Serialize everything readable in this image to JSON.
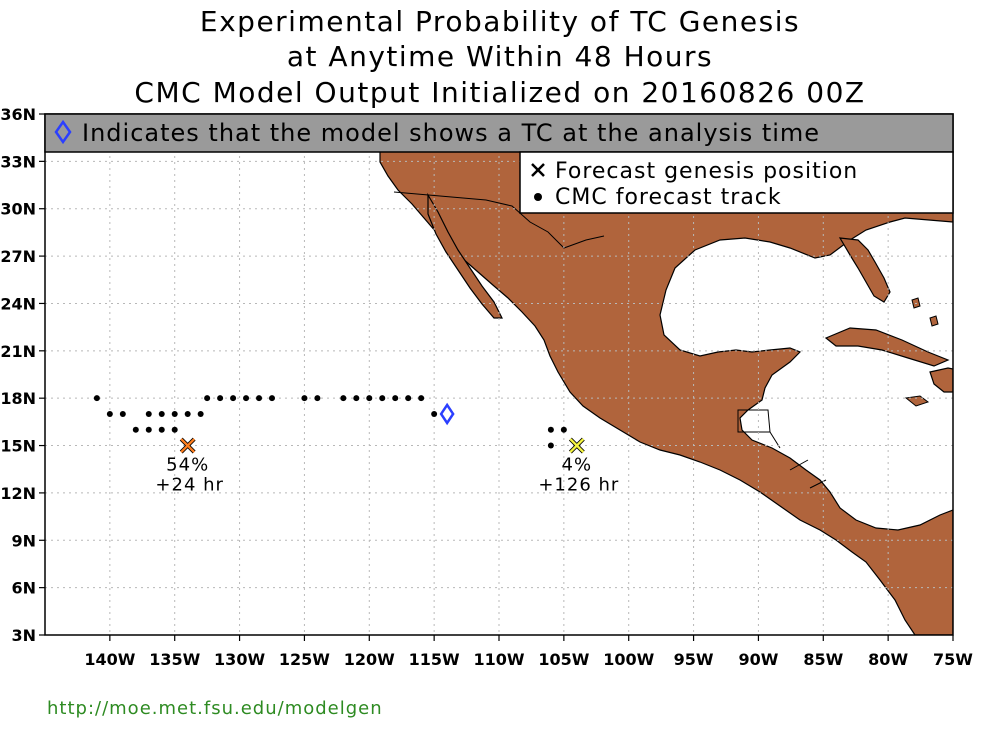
{
  "title": {
    "line1": "Experimental Probability of TC Genesis",
    "line2": "at Anytime Within 48 Hours",
    "line3": "CMC Model Output Initialized on 20160826 00Z"
  },
  "note": {
    "icon": "diamond-icon",
    "text": "Indicates that the model shows a TC at the analysis time",
    "icon_color": "#2b3fff"
  },
  "legend": {
    "items": [
      {
        "icon": "x-icon",
        "label": "Forecast genesis position"
      },
      {
        "icon": "dot-icon",
        "label": "CMC forecast track"
      }
    ]
  },
  "chart_data": {
    "type": "scatter",
    "title": "Experimental Probability of TC Genesis at Anytime Within 48 Hours",
    "xlim": [
      -145,
      -75
    ],
    "ylim": [
      3,
      36
    ],
    "x_ticks": [
      {
        "value": -140,
        "label": "140W"
      },
      {
        "value": -135,
        "label": "135W"
      },
      {
        "value": -130,
        "label": "130W"
      },
      {
        "value": -125,
        "label": "125W"
      },
      {
        "value": -120,
        "label": "120W"
      },
      {
        "value": -115,
        "label": "115W"
      },
      {
        "value": -110,
        "label": "110W"
      },
      {
        "value": -105,
        "label": "105W"
      },
      {
        "value": -100,
        "label": "100W"
      },
      {
        "value": -95,
        "label": "95W"
      },
      {
        "value": -90,
        "label": "90W"
      },
      {
        "value": -85,
        "label": "85W"
      },
      {
        "value": -80,
        "label": "80W"
      },
      {
        "value": -75,
        "label": "75W"
      }
    ],
    "y_ticks": [
      {
        "value": 3,
        "label": "3N"
      },
      {
        "value": 6,
        "label": "6N"
      },
      {
        "value": 9,
        "label": "9N"
      },
      {
        "value": 12,
        "label": "12N"
      },
      {
        "value": 15,
        "label": "15N"
      },
      {
        "value": 18,
        "label": "18N"
      },
      {
        "value": 21,
        "label": "21N"
      },
      {
        "value": 24,
        "label": "24N"
      },
      {
        "value": 27,
        "label": "27N"
      },
      {
        "value": 30,
        "label": "30N"
      },
      {
        "value": 33,
        "label": "33N"
      },
      {
        "value": 36,
        "label": "36N"
      }
    ],
    "grid": true,
    "legend_placement": "top-right",
    "land_color": "#b0643c",
    "ocean_color": "#ffffff",
    "track_points": [
      {
        "lon": -141.0,
        "lat": 18
      },
      {
        "lon": -140.0,
        "lat": 17
      },
      {
        "lon": -139.0,
        "lat": 17
      },
      {
        "lon": -138.0,
        "lat": 16
      },
      {
        "lon": -137.0,
        "lat": 17
      },
      {
        "lon": -137.0,
        "lat": 16
      },
      {
        "lon": -136.0,
        "lat": 17
      },
      {
        "lon": -136.0,
        "lat": 16
      },
      {
        "lon": -135.0,
        "lat": 17
      },
      {
        "lon": -135.0,
        "lat": 16
      },
      {
        "lon": -134.0,
        "lat": 17
      },
      {
        "lon": -133.0,
        "lat": 17
      },
      {
        "lon": -132.5,
        "lat": 18
      },
      {
        "lon": -131.5,
        "lat": 18
      },
      {
        "lon": -130.5,
        "lat": 18
      },
      {
        "lon": -129.5,
        "lat": 18
      },
      {
        "lon": -128.5,
        "lat": 18
      },
      {
        "lon": -127.5,
        "lat": 18
      },
      {
        "lon": -125.0,
        "lat": 18
      },
      {
        "lon": -124.0,
        "lat": 18
      },
      {
        "lon": -122.0,
        "lat": 18
      },
      {
        "lon": -121.0,
        "lat": 18
      },
      {
        "lon": -120.0,
        "lat": 18
      },
      {
        "lon": -119.0,
        "lat": 18
      },
      {
        "lon": -118.0,
        "lat": 18
      },
      {
        "lon": -117.0,
        "lat": 18
      },
      {
        "lon": -116.0,
        "lat": 18
      },
      {
        "lon": -115.0,
        "lat": 17
      },
      {
        "lon": -106.0,
        "lat": 16
      },
      {
        "lon": -105.0,
        "lat": 16
      },
      {
        "lon": -106.0,
        "lat": 15
      }
    ],
    "analysis_tc": [
      {
        "lon": -114.0,
        "lat": 17
      }
    ],
    "genesis": [
      {
        "lon": -134.0,
        "lat": 15,
        "probability": "54%",
        "lead": "+24 hr",
        "color": "#ff7f1f"
      },
      {
        "lon": -104.0,
        "lat": 15,
        "probability": "4%",
        "lead": "+126 hr",
        "color": "#f5f542"
      }
    ]
  },
  "footer": {
    "url": "http://moe.met.fsu.edu/modelgen",
    "url_color": "#2e8b22"
  }
}
